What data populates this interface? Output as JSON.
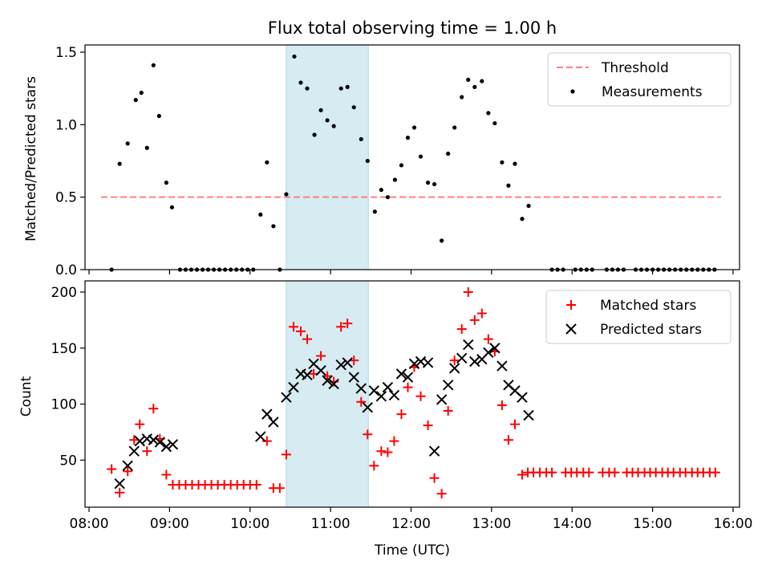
{
  "title": "Flux total observing time = 1.00 h",
  "colors": {
    "threshold": "#ff7f7f",
    "measurements": "#000000",
    "matched": "#ff0000",
    "predicted": "#000000",
    "highlight": "#add8e6"
  },
  "chart_data": [
    {
      "type": "scatter",
      "ylabel": "Matched/Predicted stars",
      "ylim": [
        0,
        1.55
      ],
      "xlim": [
        7.95,
        16.08
      ],
      "yticks": [
        "0.0",
        "0.5",
        "1.0",
        "1.5"
      ],
      "legend_placement": "top-right",
      "highlight_span": [
        10.45,
        11.47
      ],
      "threshold": {
        "name": "Threshold",
        "value": 0.5,
        "x": [
          8.15,
          15.85
        ]
      },
      "series": [
        {
          "name": "Measurements",
          "points": [
            [
              8.28,
              0
            ],
            [
              8.38,
              0.73
            ],
            [
              8.48,
              0.87
            ],
            [
              8.58,
              1.17
            ],
            [
              8.65,
              1.22
            ],
            [
              8.72,
              0.84
            ],
            [
              8.8,
              1.41
            ],
            [
              8.87,
              1.06
            ],
            [
              8.96,
              0.6
            ],
            [
              9.03,
              0.43
            ],
            [
              9.13,
              0
            ],
            [
              9.2,
              0
            ],
            [
              9.27,
              0
            ],
            [
              9.34,
              0
            ],
            [
              9.41,
              0
            ],
            [
              9.48,
              0
            ],
            [
              9.55,
              0
            ],
            [
              9.62,
              0
            ],
            [
              9.69,
              0
            ],
            [
              9.76,
              0
            ],
            [
              9.83,
              0
            ],
            [
              9.9,
              0
            ],
            [
              9.97,
              0
            ],
            [
              10.04,
              0
            ],
            [
              10.13,
              0.38
            ],
            [
              10.21,
              0.74
            ],
            [
              10.29,
              0.3
            ],
            [
              10.37,
              0
            ],
            [
              10.45,
              0.52
            ],
            [
              10.55,
              1.47
            ],
            [
              10.63,
              1.29
            ],
            [
              10.71,
              1.25
            ],
            [
              10.8,
              0.93
            ],
            [
              10.88,
              1.1
            ],
            [
              10.96,
              1.03
            ],
            [
              11.04,
              0.99
            ],
            [
              11.13,
              1.25
            ],
            [
              11.21,
              1.26
            ],
            [
              11.29,
              1.12
            ],
            [
              11.38,
              0.9
            ],
            [
              11.46,
              0.75
            ],
            [
              11.55,
              0.4
            ],
            [
              11.63,
              0.55
            ],
            [
              11.71,
              0.5
            ],
            [
              11.8,
              0.62
            ],
            [
              11.88,
              0.72
            ],
            [
              11.96,
              0.91
            ],
            [
              12.04,
              0.98
            ],
            [
              12.12,
              0.78
            ],
            [
              12.21,
              0.6
            ],
            [
              12.29,
              0.59
            ],
            [
              12.38,
              0.2
            ],
            [
              12.46,
              0.8
            ],
            [
              12.54,
              0.98
            ],
            [
              12.63,
              1.19
            ],
            [
              12.71,
              1.31
            ],
            [
              12.79,
              1.26
            ],
            [
              12.88,
              1.3
            ],
            [
              12.96,
              1.08
            ],
            [
              13.04,
              1.01
            ],
            [
              13.13,
              0.74
            ],
            [
              13.21,
              0.58
            ],
            [
              13.29,
              0.73
            ],
            [
              13.38,
              0.35
            ],
            [
              13.46,
              0.44
            ],
            [
              13.75,
              0
            ],
            [
              13.82,
              0
            ],
            [
              13.89,
              0
            ],
            [
              14.04,
              0
            ],
            [
              14.11,
              0
            ],
            [
              14.18,
              0
            ],
            [
              14.25,
              0
            ],
            [
              14.43,
              0
            ],
            [
              14.5,
              0
            ],
            [
              14.57,
              0
            ],
            [
              14.64,
              0
            ],
            [
              14.79,
              0
            ],
            [
              14.86,
              0
            ],
            [
              14.93,
              0
            ],
            [
              15.0,
              0
            ],
            [
              15.07,
              0
            ],
            [
              15.14,
              0
            ],
            [
              15.21,
              0
            ],
            [
              15.28,
              0
            ],
            [
              15.35,
              0
            ],
            [
              15.42,
              0
            ],
            [
              15.49,
              0
            ],
            [
              15.56,
              0
            ],
            [
              15.63,
              0
            ],
            [
              15.7,
              0
            ],
            [
              15.77,
              0
            ]
          ]
        }
      ]
    },
    {
      "type": "scatter",
      "xlabel": "Time (UTC)",
      "ylabel": "Count",
      "ylim": [
        8,
        210
      ],
      "xlim": [
        7.95,
        16.08
      ],
      "yticks": [
        "50",
        "100",
        "150",
        "200"
      ],
      "xticks": [
        "08:00",
        "09:00",
        "10:00",
        "11:00",
        "12:00",
        "13:00",
        "14:00",
        "15:00",
        "16:00"
      ],
      "legend_placement": "top-right",
      "highlight_span": [
        10.45,
        11.47
      ],
      "series": [
        {
          "name": "Matched stars",
          "marker": "plus",
          "points": [
            [
              8.28,
              42
            ],
            [
              8.38,
              21
            ],
            [
              8.48,
              40
            ],
            [
              8.56,
              68
            ],
            [
              8.63,
              82
            ],
            [
              8.72,
              58
            ],
            [
              8.8,
              96
            ],
            [
              8.88,
              69
            ],
            [
              8.96,
              37
            ],
            [
              9.04,
              28
            ],
            [
              9.12,
              28
            ],
            [
              9.2,
              28
            ],
            [
              9.28,
              28
            ],
            [
              9.36,
              28
            ],
            [
              9.44,
              28
            ],
            [
              9.52,
              28
            ],
            [
              9.6,
              28
            ],
            [
              9.68,
              28
            ],
            [
              9.76,
              28
            ],
            [
              9.84,
              28
            ],
            [
              9.92,
              28
            ],
            [
              10.0,
              28
            ],
            [
              10.08,
              28
            ],
            [
              10.21,
              67
            ],
            [
              10.29,
              25
            ],
            [
              10.37,
              25
            ],
            [
              10.45,
              55
            ],
            [
              10.54,
              169
            ],
            [
              10.63,
              165
            ],
            [
              10.71,
              158
            ],
            [
              10.79,
              127
            ],
            [
              10.88,
              143
            ],
            [
              10.96,
              125
            ],
            [
              11.04,
              120
            ],
            [
              11.13,
              169
            ],
            [
              11.21,
              172
            ],
            [
              11.29,
              139
            ],
            [
              11.38,
              102
            ],
            [
              11.46,
              73
            ],
            [
              11.54,
              45
            ],
            [
              11.63,
              58
            ],
            [
              11.71,
              57
            ],
            [
              11.79,
              67
            ],
            [
              11.88,
              91
            ],
            [
              11.96,
              115
            ],
            [
              12.04,
              133
            ],
            [
              12.12,
              107
            ],
            [
              12.21,
              81
            ],
            [
              12.29,
              34
            ],
            [
              12.38,
              20
            ],
            [
              12.46,
              94
            ],
            [
              12.54,
              139
            ],
            [
              12.63,
              167
            ],
            [
              12.71,
              200
            ],
            [
              12.79,
              175
            ],
            [
              12.88,
              181
            ],
            [
              12.96,
              158
            ],
            [
              13.04,
              147
            ],
            [
              13.13,
              99
            ],
            [
              13.21,
              68
            ],
            [
              13.29,
              82
            ],
            [
              13.38,
              37
            ],
            [
              13.45,
              39
            ],
            [
              13.52,
              39
            ],
            [
              13.6,
              39
            ],
            [
              13.68,
              39
            ],
            [
              13.75,
              39
            ],
            [
              13.92,
              39
            ],
            [
              13.99,
              39
            ],
            [
              14.06,
              39
            ],
            [
              14.14,
              39
            ],
            [
              14.21,
              39
            ],
            [
              14.38,
              39
            ],
            [
              14.46,
              39
            ],
            [
              14.53,
              39
            ],
            [
              14.68,
              39
            ],
            [
              14.75,
              39
            ],
            [
              14.82,
              39
            ],
            [
              14.9,
              39
            ],
            [
              14.97,
              39
            ],
            [
              15.04,
              39
            ],
            [
              15.12,
              39
            ],
            [
              15.19,
              39
            ],
            [
              15.26,
              39
            ],
            [
              15.34,
              39
            ],
            [
              15.41,
              39
            ],
            [
              15.49,
              39
            ],
            [
              15.56,
              39
            ],
            [
              15.63,
              39
            ],
            [
              15.71,
              39
            ],
            [
              15.78,
              39
            ]
          ]
        },
        {
          "name": "Predicted stars",
          "marker": "x",
          "points": [
            [
              8.38,
              29
            ],
            [
              8.48,
              45
            ],
            [
              8.56,
              58
            ],
            [
              8.63,
              67
            ],
            [
              8.72,
              69
            ],
            [
              8.8,
              68
            ],
            [
              8.88,
              66
            ],
            [
              8.96,
              62
            ],
            [
              9.04,
              64
            ],
            [
              10.13,
              71
            ],
            [
              10.21,
              91
            ],
            [
              10.29,
              84
            ],
            [
              10.45,
              106
            ],
            [
              10.54,
              115
            ],
            [
              10.63,
              127
            ],
            [
              10.71,
              126
            ],
            [
              10.79,
              136
            ],
            [
              10.88,
              130
            ],
            [
              10.96,
              121
            ],
            [
              11.04,
              118
            ],
            [
              11.13,
              135
            ],
            [
              11.21,
              137
            ],
            [
              11.29,
              124
            ],
            [
              11.38,
              114
            ],
            [
              11.46,
              97
            ],
            [
              11.54,
              112
            ],
            [
              11.63,
              107
            ],
            [
              11.71,
              115
            ],
            [
              11.79,
              108
            ],
            [
              11.88,
              127
            ],
            [
              11.96,
              124
            ],
            [
              12.04,
              136
            ],
            [
              12.12,
              138
            ],
            [
              12.21,
              137
            ],
            [
              12.29,
              58
            ],
            [
              12.38,
              104
            ],
            [
              12.46,
              117
            ],
            [
              12.54,
              132
            ],
            [
              12.63,
              141
            ],
            [
              12.71,
              153
            ],
            [
              12.79,
              138
            ],
            [
              12.88,
              140
            ],
            [
              12.96,
              146
            ],
            [
              13.04,
              150
            ],
            [
              13.13,
              134
            ],
            [
              13.21,
              117
            ],
            [
              13.29,
              112
            ],
            [
              13.38,
              106
            ],
            [
              13.46,
              90
            ]
          ]
        }
      ]
    }
  ]
}
